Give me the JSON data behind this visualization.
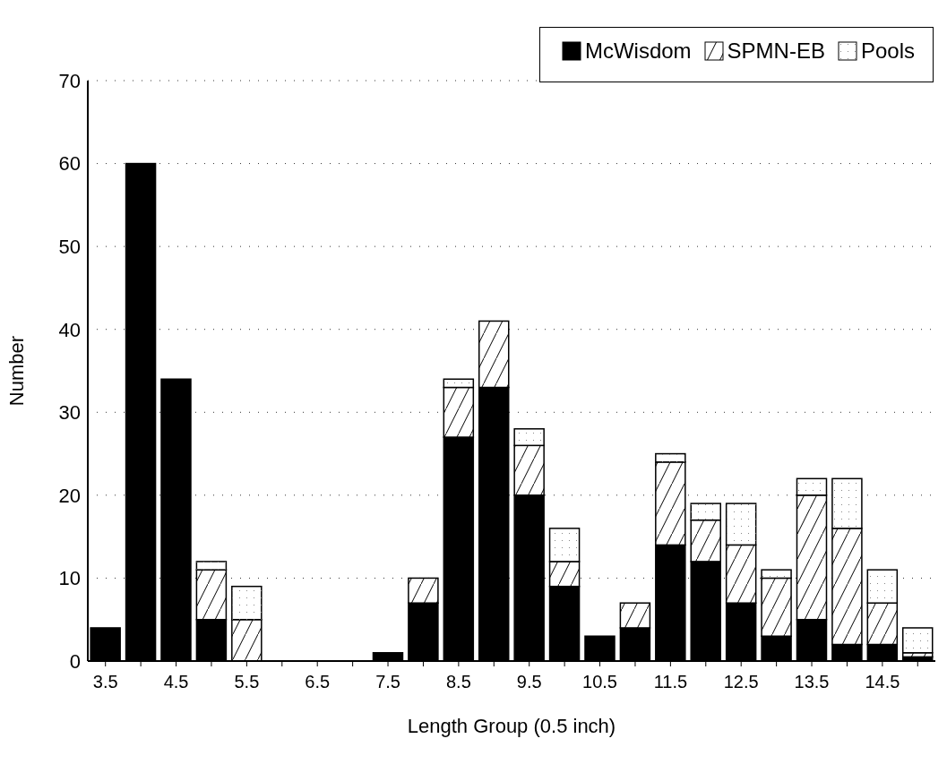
{
  "chart_data": {
    "type": "bar",
    "stacked": true,
    "xlabel": "Length Group (0.5 inch)",
    "ylabel": "Number",
    "categories": [
      "3.5",
      null,
      "4.5",
      null,
      "5.5",
      null,
      "6.5",
      null,
      "7.5",
      null,
      "8.5",
      null,
      "9.5",
      null,
      "10.5",
      null,
      "11.5",
      null,
      "12.5",
      null,
      "13.5",
      null,
      "14.5",
      null
    ],
    "series": [
      {
        "name": "McWisdom",
        "color": "#000000",
        "values": [
          4,
          60,
          34,
          5,
          0,
          0,
          0,
          0,
          1,
          7,
          27,
          33,
          20,
          9,
          3,
          4,
          14,
          12,
          7,
          3,
          5,
          2,
          2,
          0.5
        ]
      },
      {
        "name": "SPMN-EB",
        "color": "#ffffff",
        "values": [
          0,
          0,
          0,
          6,
          5,
          0,
          0,
          0,
          0,
          3,
          6,
          8,
          6,
          3,
          0,
          3,
          10,
          5,
          7,
          7,
          15,
          14,
          5,
          0.5
        ]
      },
      {
        "name": "Pools",
        "color": "#ffffff",
        "values": [
          0,
          0,
          0,
          1,
          4,
          0,
          0,
          0,
          0,
          0,
          1,
          0,
          2,
          4,
          0,
          0,
          1,
          2,
          5,
          1,
          2,
          6,
          4,
          3
        ]
      }
    ],
    "ylim": [
      0,
      70
    ],
    "yticks": [
      0,
      10,
      20,
      30,
      40,
      50,
      60,
      70
    ],
    "grid": "y",
    "legend": "top right"
  }
}
